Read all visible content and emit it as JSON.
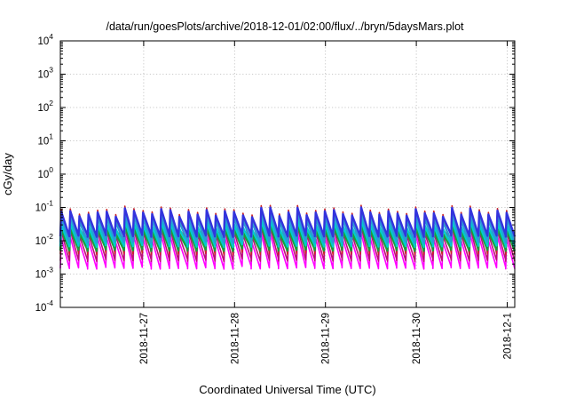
{
  "chart_data": {
    "type": "line",
    "title": "/data/run/goesPlots/archive/2018-12-01/02:00/flux/../bryn/5daysMars.plot",
    "xlabel": "Coordinated Universal Time (UTC)",
    "ylabel": "cGy/day",
    "yscale": "log",
    "ylim": [
      0.0001,
      10000
    ],
    "x_days_start": "2018-11-26 02:00",
    "x_days_end": "2018-12-01 02:00",
    "x_ticks": [
      {
        "label": "2018-11-27",
        "day": 0.917
      },
      {
        "label": "2018-11-28",
        "day": 1.917
      },
      {
        "label": "2018-11-29",
        "day": 2.917
      },
      {
        "label": "2018-11-30",
        "day": 3.917
      },
      {
        "label": "2018-12-1",
        "day": 4.917
      }
    ],
    "y_ticks": [
      {
        "base": "10",
        "exp": "4",
        "value": 10000
      },
      {
        "base": "10",
        "exp": "3",
        "value": 1000
      },
      {
        "base": "10",
        "exp": "2",
        "value": 100
      },
      {
        "base": "10",
        "exp": "1",
        "value": 10
      },
      {
        "base": "10",
        "exp": "0",
        "value": 1
      },
      {
        "base": "10",
        "exp": "-1",
        "value": 0.1
      },
      {
        "base": "10",
        "exp": "-2",
        "value": 0.01
      },
      {
        "base": "10",
        "exp": "-3",
        "value": 0.001
      },
      {
        "base": "10",
        "exp": "-4",
        "value": 0.0001
      }
    ],
    "grid": true,
    "pattern": "sawtooth",
    "cycles": 50,
    "series": [
      {
        "color": "#ff00ff",
        "peak": 0.011,
        "trough": 0.0013
      },
      {
        "color": "#bb1177",
        "peak": 0.017,
        "trough": 0.0022
      },
      {
        "color": "#cc2222",
        "peak": 0.075,
        "trough": 0.0035
      },
      {
        "color": "#1a9e3a",
        "peak": 0.02,
        "trough": 0.0045
      },
      {
        "color": "#00cccc",
        "peak": 0.028,
        "trough": 0.006
      },
      {
        "color": "#2a9ad8",
        "peak": 0.045,
        "trough": 0.008
      },
      {
        "color": "#3333dd",
        "peak": 0.065,
        "trough": 0.012
      }
    ]
  }
}
